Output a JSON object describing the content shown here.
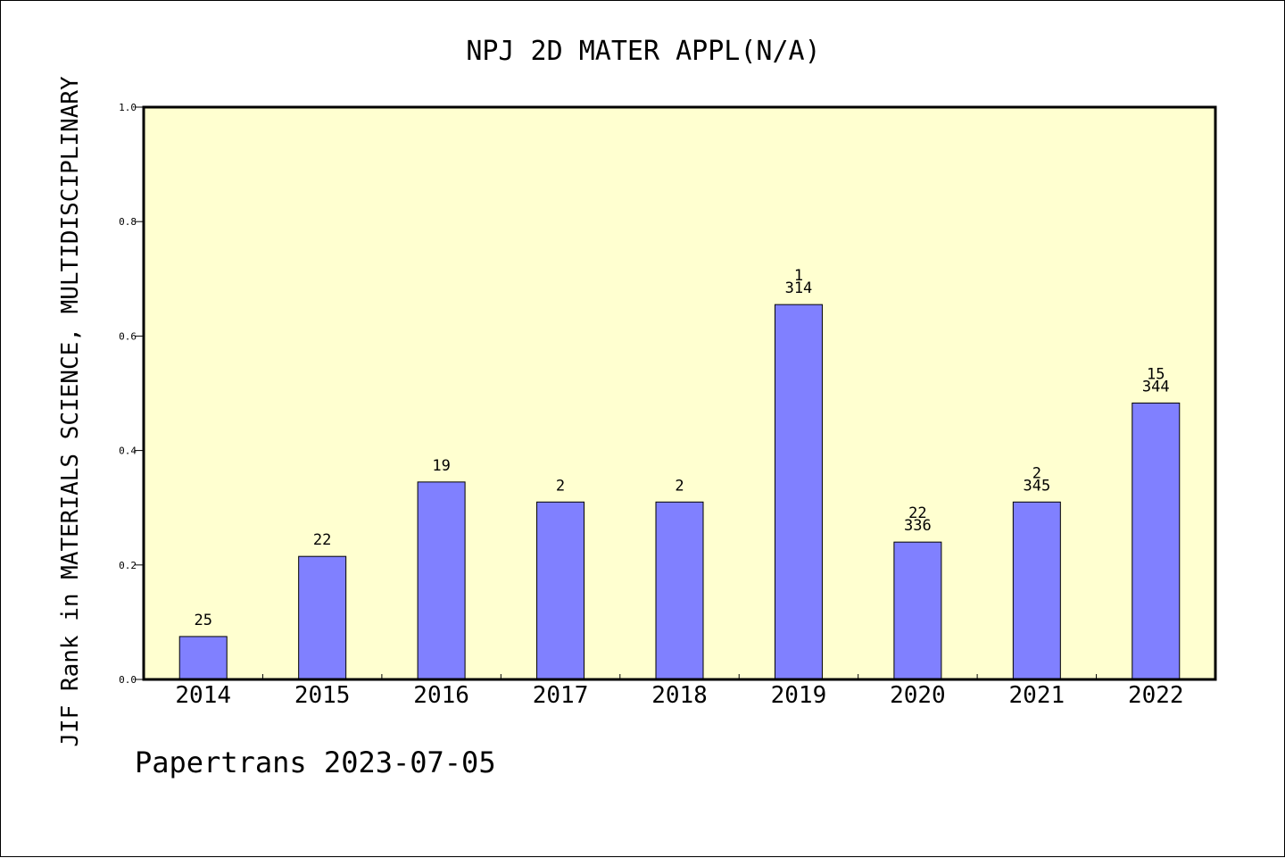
{
  "chart_data": {
    "type": "bar",
    "title": "NPJ 2D MATER APPL(N/A)",
    "xlabel": "",
    "ylabel": "JIF Rank in MATERIALS SCIENCE, MULTIDISCIPLINARY",
    "ylim": [
      0,
      1.0
    ],
    "yticks": [
      "0.0",
      "0.2",
      "0.4",
      "0.6",
      "0.8",
      "1.0"
    ],
    "categories": [
      "2014",
      "2015",
      "2016",
      "2017",
      "2018",
      "2019",
      "2020",
      "2021",
      "2022"
    ],
    "values": [
      0.075,
      0.215,
      0.345,
      0.31,
      0.31,
      0.655,
      0.24,
      0.31,
      0.483
    ],
    "labels": [
      [
        "25"
      ],
      [
        "22"
      ],
      [
        "19"
      ],
      [
        "2"
      ],
      [
        "2"
      ],
      [
        "1",
        "314"
      ],
      [
        "22",
        "336"
      ],
      [
        "2",
        "345"
      ],
      [
        "15",
        "344"
      ]
    ],
    "grid": false,
    "legend": "none",
    "colors": {
      "plot_background": "#ffffd0",
      "bar_fill": "#8080ff",
      "bar_stroke": "#000000",
      "axes": "#000000"
    }
  },
  "footer": {
    "text": "Papertrans 2023-07-05"
  }
}
